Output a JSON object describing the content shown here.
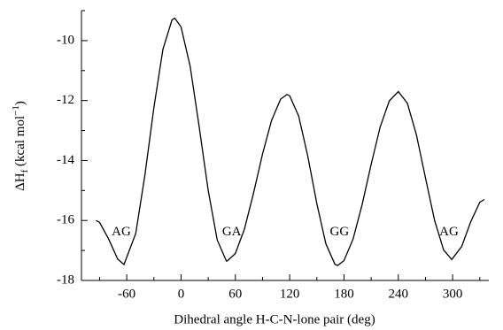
{
  "chart_data": {
    "type": "line",
    "xlabel": "Dihedral angle H-C-N-lone pair (deg)",
    "ylabel": [
      "ΔH",
      "f",
      " (kcal mol",
      "−1",
      ")"
    ],
    "x": [
      -94,
      -90,
      -80,
      -70,
      -63,
      -50,
      -40,
      -30,
      -20,
      -10,
      -7,
      0,
      10,
      20,
      30,
      40,
      50,
      51,
      60,
      70,
      80,
      90,
      100,
      110,
      117,
      120,
      130,
      140,
      150,
      160,
      170,
      173,
      180,
      190,
      200,
      210,
      220,
      230,
      240,
      250,
      260,
      270,
      280,
      290,
      299,
      310,
      320,
      330,
      335
    ],
    "series": [
      {
        "color": "#000000",
        "values": [
          -16.0,
          -16.06,
          -16.62,
          -17.29,
          -17.47,
          -16.43,
          -14.49,
          -12.23,
          -10.29,
          -9.31,
          -9.25,
          -9.54,
          -10.85,
          -12.87,
          -15.0,
          -16.65,
          -17.35,
          -17.35,
          -17.1,
          -16.29,
          -15.1,
          -13.79,
          -12.66,
          -11.95,
          -11.8,
          -11.84,
          -12.52,
          -13.86,
          -15.44,
          -16.78,
          -17.46,
          -17.5,
          -17.34,
          -16.62,
          -15.47,
          -14.13,
          -12.88,
          -12.01,
          -11.7,
          -12.09,
          -13.14,
          -14.57,
          -15.99,
          -16.98,
          -17.3,
          -16.87,
          -16.04,
          -15.39,
          -15.3
        ]
      }
    ],
    "xlim": [
      -110,
      340
    ],
    "ylim": [
      -18,
      -9
    ],
    "xticks": [
      -60,
      0,
      60,
      120,
      180,
      240,
      300
    ],
    "xticks_minor": [
      -90,
      -30,
      30,
      90,
      150,
      210,
      270,
      330
    ],
    "yticks": [
      -18,
      -16,
      -14,
      -12,
      -10
    ],
    "yticks_minor": [
      -17,
      -15,
      -13,
      -11,
      -9
    ],
    "annotations": [
      {
        "text": "AG",
        "x": -66,
        "y": -16.4
      },
      {
        "text": "GA",
        "x": 56,
        "y": -16.4
      },
      {
        "text": "GG",
        "x": 175,
        "y": -16.4
      },
      {
        "text": "AG",
        "x": 296,
        "y": -16.4
      }
    ]
  }
}
